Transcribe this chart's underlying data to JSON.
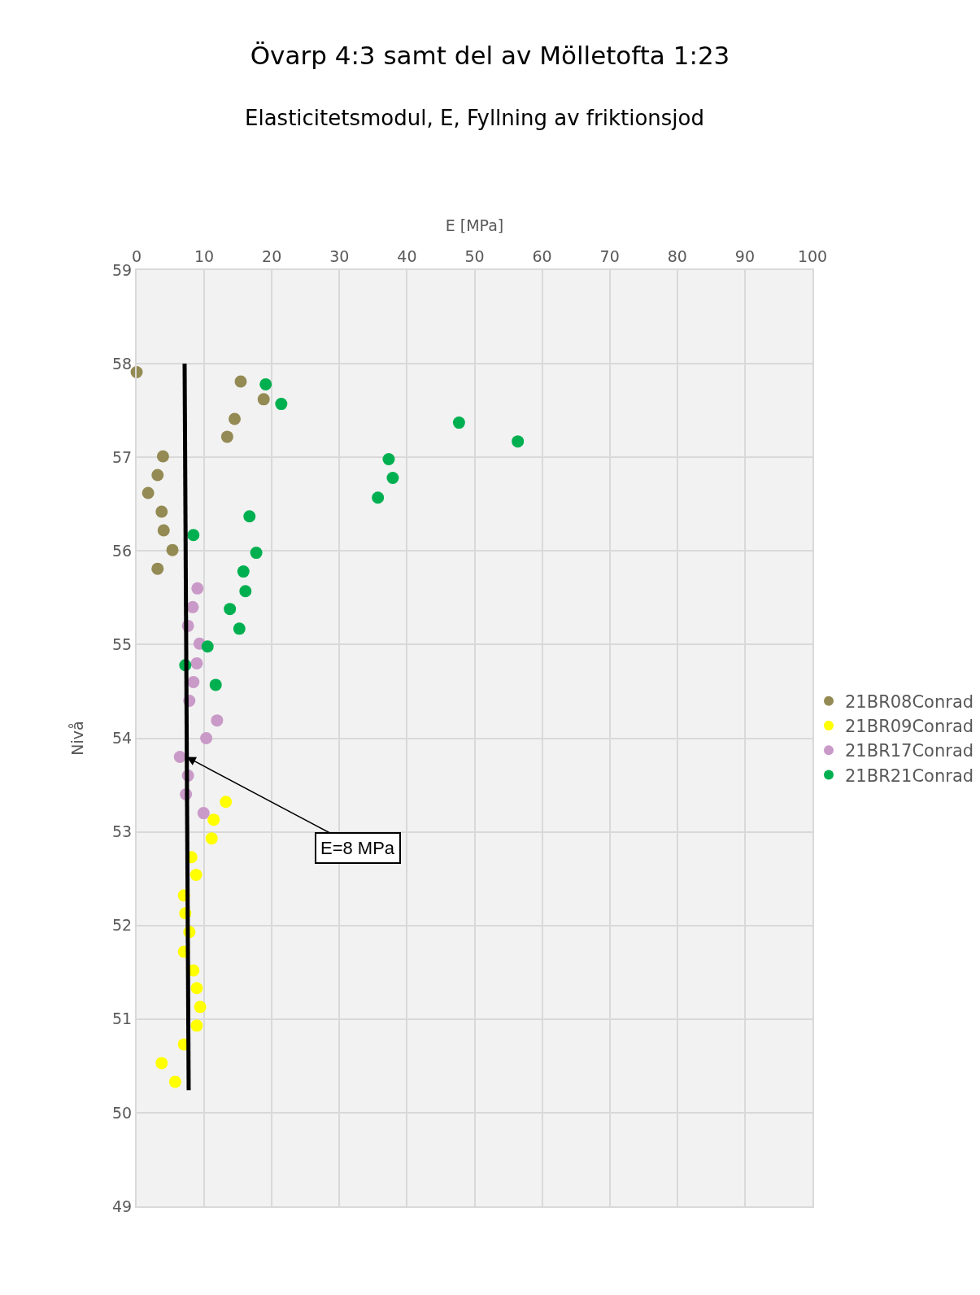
{
  "chart_data": {
    "type": "scatter",
    "title": "Övarp 4:3 samt del av Mölletofta 1:23",
    "subtitle": "Elasticitetsmodul, E, Fyllning av friktionsjod",
    "xlabel": "E [MPa]",
    "ylabel": "Nivå",
    "xlim": [
      0,
      100
    ],
    "xticks": [
      0,
      10,
      20,
      30,
      40,
      50,
      60,
      70,
      80,
      90,
      100
    ],
    "ylim": [
      49,
      59
    ],
    "yticks": [
      49,
      50,
      51,
      52,
      53,
      54,
      55,
      56,
      57,
      58,
      59
    ],
    "grid": true,
    "legend": "right",
    "marker": "circle",
    "annotations": [
      {
        "text": "E=8 MPa",
        "x": 7.4,
        "y": 53.8
      }
    ],
    "series": [
      {
        "name": "21BR08Conrad",
        "color": "#948a54",
        "x": [
          0,
          15.4,
          18.8,
          14.5,
          13.4,
          3.9,
          3.1,
          1.7,
          3.7,
          4.0,
          5.3,
          3.1
        ],
        "values": [
          57.91,
          57.81,
          57.62,
          57.41,
          57.22,
          57.01,
          56.81,
          56.62,
          56.42,
          56.22,
          56.01,
          55.81
        ]
      },
      {
        "name": "21BR09Conrad",
        "color": "#ffff00",
        "x": [
          13.2,
          11.4,
          11.1,
          8.1,
          8.8,
          7.0,
          7.2,
          7.8,
          7.0,
          8.4,
          8.9,
          9.4,
          8.9,
          7.0,
          3.7,
          5.7
        ],
        "values": [
          53.32,
          53.13,
          52.93,
          52.73,
          52.54,
          52.32,
          52.13,
          51.93,
          51.72,
          51.52,
          51.33,
          51.13,
          50.93,
          50.73,
          50.53,
          50.33
        ]
      },
      {
        "name": "21BR17Conrad",
        "color": "#c99ac8",
        "x": [
          9.0,
          8.3,
          7.6,
          9.3,
          8.9,
          8.4,
          7.8,
          11.9,
          10.3,
          6.4,
          7.6,
          7.3,
          9.9
        ],
        "values": [
          55.6,
          55.4,
          55.2,
          55.01,
          54.8,
          54.6,
          54.4,
          54.19,
          54.0,
          53.8,
          53.6,
          53.4,
          53.2
        ]
      },
      {
        "name": "21BR21Conrad",
        "color": "#00b050",
        "x": [
          19.1,
          21.4,
          47.7,
          56.4,
          37.3,
          37.9,
          35.7,
          16.7,
          8.4,
          17.7,
          15.8,
          16.1,
          13.8,
          15.2,
          10.5,
          7.2,
          11.7
        ],
        "values": [
          57.78,
          57.57,
          57.37,
          57.17,
          56.98,
          56.78,
          56.57,
          56.37,
          56.17,
          55.98,
          55.78,
          55.57,
          55.38,
          55.17,
          54.98,
          54.78,
          54.57
        ]
      },
      {
        "type": "line",
        "marker": "none",
        "color": "#000000",
        "x": [
          7.1,
          7.7
        ],
        "values": [
          58.0,
          50.24
        ]
      }
    ]
  }
}
